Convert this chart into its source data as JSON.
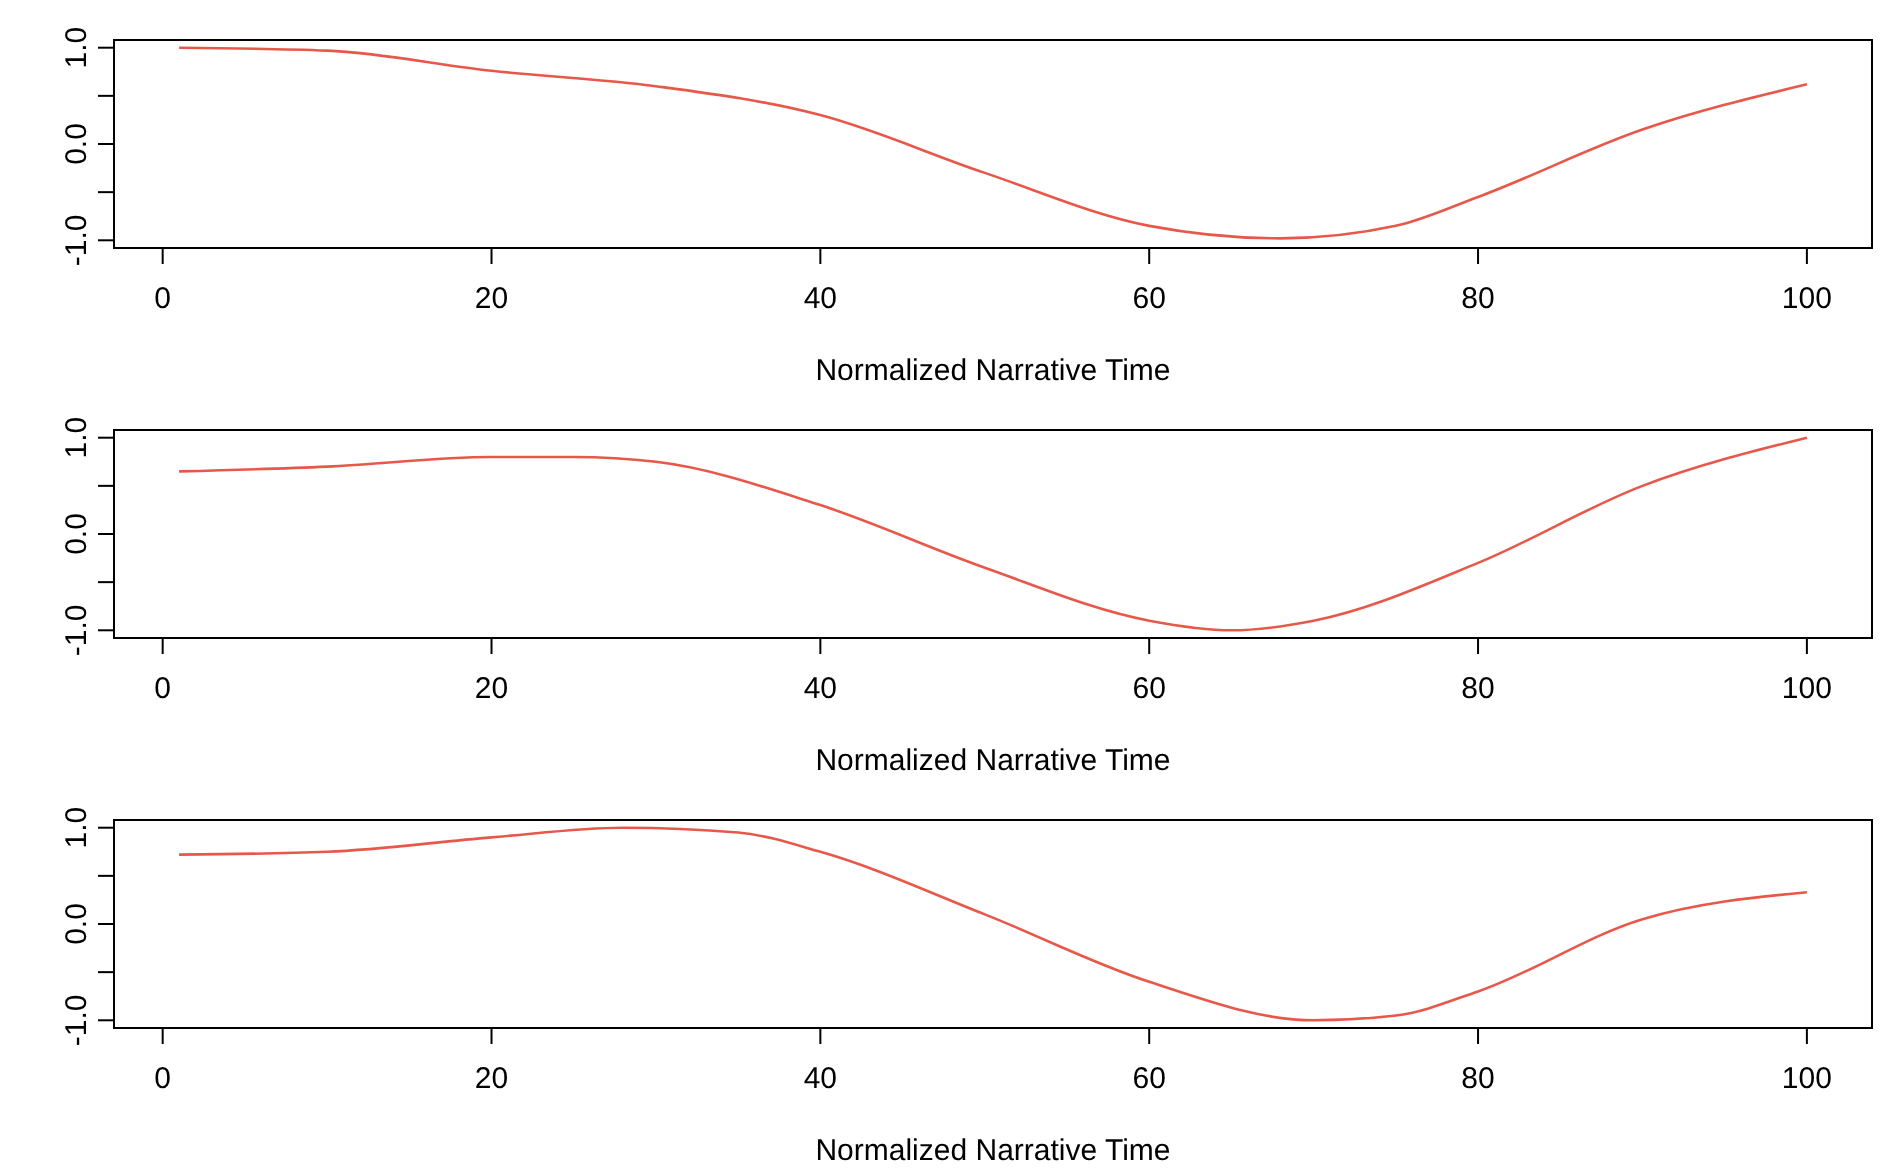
{
  "chart_data": [
    {
      "type": "line",
      "xlabel": "Normalized Narrative Time",
      "xlim": [
        -2.96,
        103.96
      ],
      "ylim": [
        -1.08,
        1.08
      ],
      "xticks": [
        0,
        20,
        40,
        60,
        80,
        100
      ],
      "yticks": [
        {
          "value": 1,
          "label": "1.0"
        },
        {
          "value": 0.5,
          "label": null
        },
        {
          "value": 0,
          "label": "0.0"
        },
        {
          "value": -0.5,
          "label": null
        },
        {
          "value": -1,
          "label": "-1.0"
        }
      ],
      "series": [
        {
          "color": "#e8584a",
          "x": [
            1,
            10,
            20,
            30,
            40,
            50,
            60,
            68,
            75,
            80,
            90,
            100
          ],
          "values": [
            1.0,
            0.97,
            0.76,
            0.6,
            0.3,
            -0.3,
            -0.85,
            -0.98,
            -0.85,
            -0.55,
            0.15,
            0.62
          ]
        }
      ]
    },
    {
      "type": "line",
      "xlabel": "Normalized Narrative Time",
      "xlim": [
        -2.96,
        103.96
      ],
      "ylim": [
        -1.08,
        1.08
      ],
      "xticks": [
        0,
        20,
        40,
        60,
        80,
        100
      ],
      "yticks": [
        {
          "value": 1,
          "label": "1.0"
        },
        {
          "value": 0.5,
          "label": null
        },
        {
          "value": 0,
          "label": "0.0"
        },
        {
          "value": -0.5,
          "label": null
        },
        {
          "value": -1,
          "label": "-1.0"
        }
      ],
      "series": [
        {
          "color": "#e8584a",
          "x": [
            1,
            10,
            20,
            25,
            30,
            40,
            50,
            60,
            65,
            70,
            80,
            90,
            100
          ],
          "values": [
            0.65,
            0.7,
            0.8,
            0.8,
            0.75,
            0.3,
            -0.35,
            -0.9,
            -1.0,
            -0.9,
            -0.3,
            0.5,
            1.0
          ]
        }
      ]
    },
    {
      "type": "line",
      "xlabel": "Normalized Narrative Time",
      "xlim": [
        -2.96,
        103.96
      ],
      "ylim": [
        -1.08,
        1.08
      ],
      "xticks": [
        0,
        20,
        40,
        60,
        80,
        100
      ],
      "yticks": [
        {
          "value": 1,
          "label": "1.0"
        },
        {
          "value": 0.5,
          "label": null
        },
        {
          "value": 0,
          "label": "0.0"
        },
        {
          "value": -0.5,
          "label": null
        },
        {
          "value": -1,
          "label": "-1.0"
        }
      ],
      "series": [
        {
          "color": "#e8584a",
          "x": [
            1,
            10,
            20,
            28,
            35,
            40,
            50,
            60,
            70,
            75,
            80,
            90,
            100
          ],
          "values": [
            0.72,
            0.75,
            0.9,
            1.0,
            0.95,
            0.75,
            0.1,
            -0.6,
            -1.0,
            -0.95,
            -0.7,
            0.05,
            0.33
          ]
        }
      ]
    }
  ]
}
